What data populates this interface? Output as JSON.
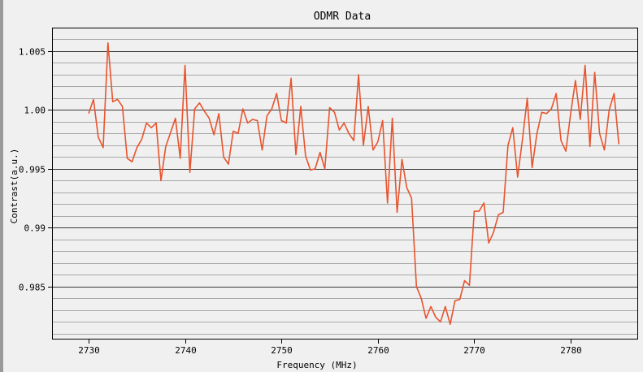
{
  "chart_data": {
    "type": "line",
    "title": "ODMR Data",
    "xlabel": "Frequency (MHz)",
    "ylabel": "Contrast(a.u.)",
    "xlim": [
      2726.2,
      2787.0
    ],
    "ylim": [
      0.9805,
      1.007
    ],
    "grid": true,
    "legend": "none",
    "x_ticks": [
      {
        "value": 2730,
        "label": "2730"
      },
      {
        "value": 2740,
        "label": "2740"
      },
      {
        "value": 2750,
        "label": "2750"
      },
      {
        "value": 2760,
        "label": "2760"
      },
      {
        "value": 2770,
        "label": "2770"
      },
      {
        "value": 2780,
        "label": "2780"
      }
    ],
    "y_ticks": [
      {
        "value": 0.985,
        "label": "0.985"
      },
      {
        "value": 0.99,
        "label": "0.99"
      },
      {
        "value": 0.995,
        "label": "0.995"
      },
      {
        "value": 1.0,
        "label": "1.00"
      },
      {
        "value": 1.005,
        "label": "1.005"
      }
    ],
    "series": [
      {
        "color": "#e8542e",
        "x": [
          2730.0,
          2730.5,
          2731.0,
          2731.5,
          2732.0,
          2732.5,
          2733.0,
          2733.5,
          2734.0,
          2734.5,
          2735.0,
          2735.5,
          2736.0,
          2736.5,
          2737.0,
          2737.5,
          2738.0,
          2738.5,
          2739.0,
          2739.5,
          2740.0,
          2740.5,
          2741.0,
          2741.5,
          2742.0,
          2742.5,
          2743.0,
          2743.5,
          2744.0,
          2744.5,
          2745.0,
          2745.5,
          2746.0,
          2746.5,
          2747.0,
          2747.5,
          2748.0,
          2748.5,
          2749.0,
          2749.5,
          2750.0,
          2750.5,
          2751.0,
          2751.5,
          2752.0,
          2752.5,
          2753.0,
          2753.5,
          2754.0,
          2754.5,
          2755.0,
          2755.5,
          2756.0,
          2756.5,
          2757.0,
          2757.5,
          2758.0,
          2758.5,
          2759.0,
          2759.5,
          2760.0,
          2760.5,
          2761.0,
          2761.5,
          2762.0,
          2762.5,
          2763.0,
          2763.5,
          2764.0,
          2764.5,
          2765.0,
          2765.5,
          2766.0,
          2766.5,
          2767.0,
          2767.5,
          2768.0,
          2768.5,
          2769.0,
          2769.5,
          2770.0,
          2770.5,
          2771.0,
          2771.5,
          2772.0,
          2772.5,
          2773.0,
          2773.5,
          2774.0,
          2774.5,
          2775.0,
          2775.5,
          2776.0,
          2776.5,
          2777.0,
          2777.5,
          2778.0,
          2778.5,
          2779.0,
          2779.5,
          2780.0,
          2780.5,
          2781.0,
          2781.5,
          2782.0,
          2782.5,
          2783.0,
          2783.5,
          2784.0,
          2784.5,
          2785.0
        ],
        "y": [
          0.9997,
          1.0009,
          0.9977,
          0.9968,
          1.0057,
          1.0007,
          1.0009,
          1.0003,
          0.9959,
          0.9956,
          0.9968,
          0.9975,
          0.9989,
          0.9985,
          0.9989,
          0.994,
          0.9969,
          0.9981,
          0.9993,
          0.9959,
          1.0038,
          0.9947,
          1.0001,
          1.0006,
          0.9999,
          0.9993,
          0.9979,
          0.9997,
          0.996,
          0.9954,
          0.9982,
          0.998,
          1.0001,
          0.9989,
          0.9992,
          0.9991,
          0.9966,
          0.9995,
          1.0001,
          1.0014,
          0.9991,
          0.9989,
          1.0027,
          0.9962,
          1.0003,
          0.9961,
          0.9949,
          0.995,
          0.9964,
          0.995,
          1.0002,
          0.9998,
          0.9983,
          0.9989,
          0.998,
          0.9974,
          1.003,
          0.997,
          1.0003,
          0.9966,
          0.9973,
          0.9991,
          0.9921,
          0.9993,
          0.9913,
          0.9958,
          0.9934,
          0.9925,
          0.985,
          0.984,
          0.9823,
          0.9833,
          0.9824,
          0.982,
          0.9833,
          0.9818,
          0.9838,
          0.9839,
          0.9855,
          0.9851,
          0.9914,
          0.9914,
          0.9921,
          0.9887,
          0.9896,
          0.9911,
          0.9913,
          0.997,
          0.9985,
          0.9943,
          0.9975,
          1.001,
          0.9951,
          0.998,
          0.9998,
          0.9997,
          1.0001,
          1.0014,
          0.9974,
          0.9965,
          0.9997,
          1.0025,
          0.9992,
          1.0038,
          0.9969,
          1.0032,
          0.998,
          0.9966,
          1.0,
          1.0014,
          0.9971
        ]
      }
    ]
  }
}
